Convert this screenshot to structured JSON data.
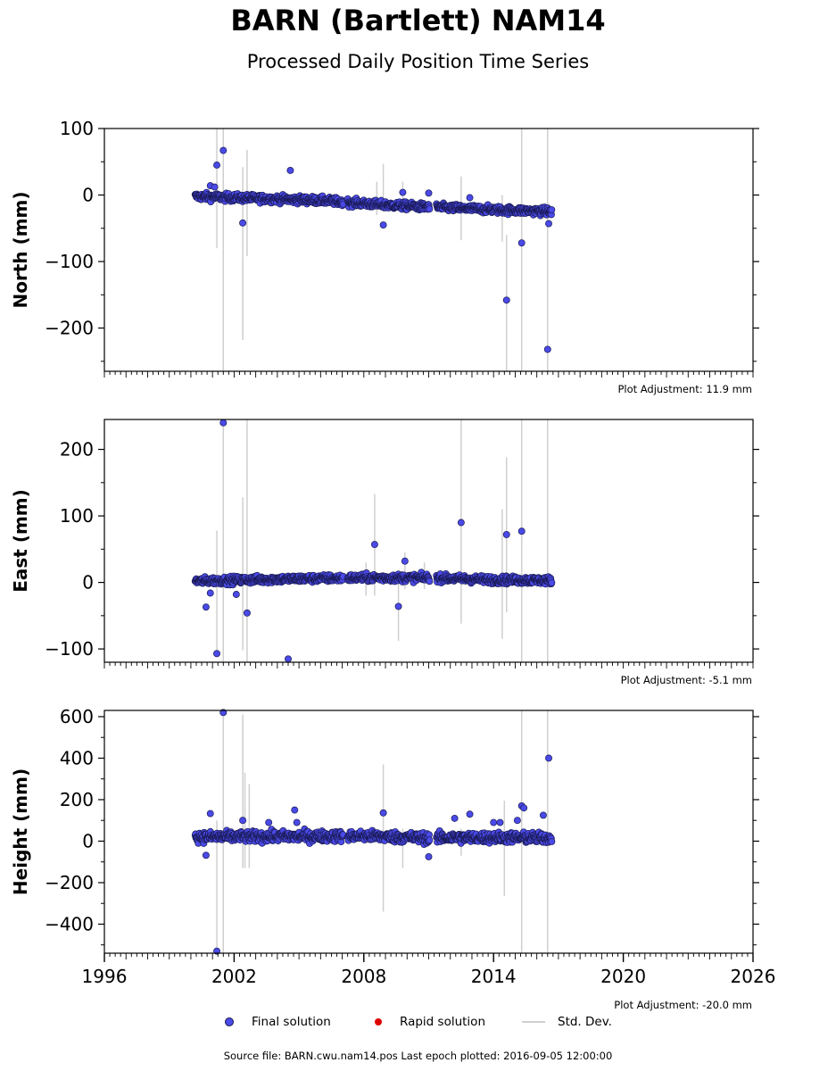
{
  "title": "BARN (Bartlett) NAM14",
  "subtitle": "Processed Daily Position Time Series",
  "legend": {
    "final": "Final solution",
    "rapid": "Rapid solution",
    "stddev": "Std. Dev."
  },
  "footer": "Source file: BARN.cwu.nam14.pos  Last epoch plotted: 2016-09-05 12:00:00",
  "colors": {
    "final_fill": "#4a4ae8",
    "final_edge": "#1a1a55",
    "rapid": "#dd0000",
    "stddev": "#cfcfcf"
  },
  "chart_data": [
    {
      "type": "scatter",
      "name": "north",
      "ylabel": "North (mm)",
      "adjustment": "Plot Adjustment: 11.9 mm",
      "xlim": [
        1996,
        2026
      ],
      "ylim": [
        -265,
        100
      ],
      "yticks": [
        100,
        0,
        -100,
        -200
      ],
      "ytick_labels": [
        "100",
        "0",
        "−100",
        "−200"
      ],
      "trend": [
        [
          2000.2,
          -2
        ],
        [
          2003,
          -5
        ],
        [
          2006,
          -8
        ],
        [
          2009,
          -15
        ],
        [
          2011,
          -18
        ],
        [
          2014,
          -22
        ],
        [
          2016.7,
          -25
        ]
      ],
      "noise": 4,
      "outliers": [
        [
          2000.9,
          14
        ],
        [
          2001.1,
          12
        ],
        [
          2001.2,
          45
        ],
        [
          2001.5,
          67
        ],
        [
          2002.4,
          -42
        ],
        [
          2004.6,
          37
        ],
        [
          2008.9,
          -45
        ],
        [
          2009.8,
          4
        ],
        [
          2011.0,
          3
        ],
        [
          2012.9,
          -4
        ],
        [
          2014.6,
          -158
        ],
        [
          2015.3,
          -72
        ],
        [
          2016.5,
          -232
        ],
        [
          2016.55,
          -43
        ]
      ],
      "errorbars": [
        [
          2001.2,
          -80,
          100
        ],
        [
          2001.5,
          -265,
          100
        ],
        [
          2002.4,
          -218,
          42
        ],
        [
          2002.6,
          -92,
          68
        ],
        [
          2008.6,
          -30,
          20
        ],
        [
          2008.9,
          -25,
          47
        ],
        [
          2009.8,
          -15,
          20
        ],
        [
          2012.5,
          -68,
          28
        ],
        [
          2014.4,
          -70,
          0
        ],
        [
          2014.6,
          -265,
          -60
        ],
        [
          2015.3,
          -265,
          100
        ],
        [
          2016.5,
          -265,
          100
        ]
      ],
      "xtick_labels": false
    },
    {
      "type": "scatter",
      "name": "east",
      "ylabel": "East (mm)",
      "adjustment": "Plot Adjustment: -5.1 mm",
      "xlim": [
        1996,
        2026
      ],
      "ylim": [
        -120,
        245
      ],
      "yticks": [
        200,
        100,
        0,
        -100
      ],
      "ytick_labels": [
        "200",
        "100",
        "0",
        "−100"
      ],
      "trend": [
        [
          2000.2,
          2
        ],
        [
          2004,
          5
        ],
        [
          2008,
          7
        ],
        [
          2011,
          7
        ],
        [
          2014,
          4
        ],
        [
          2016.7,
          3
        ]
      ],
      "noise": 4,
      "outliers": [
        [
          2000.7,
          -37
        ],
        [
          2000.9,
          -16
        ],
        [
          2001.2,
          -107
        ],
        [
          2001.5,
          240
        ],
        [
          2002.1,
          -18
        ],
        [
          2002.6,
          -46
        ],
        [
          2004.5,
          -115
        ],
        [
          2008.5,
          57
        ],
        [
          2009.6,
          -36
        ],
        [
          2009.9,
          32
        ],
        [
          2012.5,
          90
        ],
        [
          2014.6,
          72
        ],
        [
          2015.3,
          77
        ]
      ],
      "errorbars": [
        [
          2001.2,
          -110,
          78
        ],
        [
          2001.5,
          -120,
          245
        ],
        [
          2002.4,
          -102,
          128
        ],
        [
          2002.6,
          -120,
          245
        ],
        [
          2008.1,
          -20,
          30
        ],
        [
          2008.5,
          -20,
          133
        ],
        [
          2009.6,
          -88,
          0
        ],
        [
          2009.9,
          -10,
          45
        ],
        [
          2010.8,
          -10,
          30
        ],
        [
          2012.5,
          -62,
          245
        ],
        [
          2014.4,
          -85,
          110
        ],
        [
          2014.6,
          -45,
          188
        ],
        [
          2015.3,
          -120,
          245
        ],
        [
          2016.5,
          -120,
          245
        ]
      ],
      "xtick_labels": false
    },
    {
      "type": "scatter",
      "name": "height",
      "ylabel": "Height (mm)",
      "adjustment": "Plot Adjustment: -20.0 mm",
      "xlim": [
        1996,
        2026
      ],
      "ylim": [
        -540,
        630
      ],
      "yticks": [
        600,
        400,
        200,
        0,
        -200,
        -400
      ],
      "ytick_labels": [
        "600",
        "400",
        "200",
        "0",
        "−200",
        "−400"
      ],
      "trend": [
        [
          2000.2,
          20
        ],
        [
          2004,
          22
        ],
        [
          2008,
          25
        ],
        [
          2011,
          15
        ],
        [
          2014,
          18
        ],
        [
          2016.7,
          15
        ]
      ],
      "noise": 18,
      "outliers": [
        [
          2000.7,
          -68
        ],
        [
          2000.9,
          133
        ],
        [
          2001.2,
          -530
        ],
        [
          2001.5,
          620
        ],
        [
          2002.4,
          100
        ],
        [
          2003.6,
          90
        ],
        [
          2004.8,
          150
        ],
        [
          2004.9,
          90
        ],
        [
          2008.9,
          136
        ],
        [
          2011.0,
          -75
        ],
        [
          2012.2,
          110
        ],
        [
          2012.9,
          130
        ],
        [
          2014.0,
          90
        ],
        [
          2014.3,
          90
        ],
        [
          2015.1,
          100
        ],
        [
          2015.3,
          170
        ],
        [
          2015.4,
          160
        ],
        [
          2016.3,
          125
        ],
        [
          2016.55,
          400
        ]
      ],
      "errorbars": [
        [
          2001.2,
          -540,
          100
        ],
        [
          2001.5,
          -540,
          630
        ],
        [
          2002.4,
          -130,
          610
        ],
        [
          2002.5,
          -130,
          330
        ],
        [
          2002.7,
          -130,
          275
        ],
        [
          2008.9,
          -340,
          370
        ],
        [
          2009.8,
          -130,
          60
        ],
        [
          2012.5,
          -70,
          60
        ],
        [
          2014.5,
          -265,
          195
        ],
        [
          2015.3,
          -540,
          630
        ],
        [
          2016.5,
          -540,
          630
        ]
      ],
      "xticks": [
        1996,
        2002,
        2008,
        2014,
        2020,
        2026
      ],
      "xtick_labels": true
    }
  ]
}
